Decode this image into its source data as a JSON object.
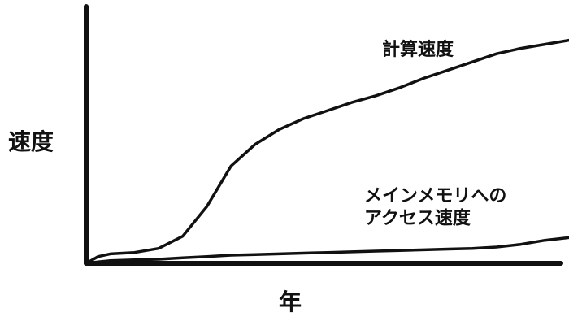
{
  "chart_data": {
    "type": "line",
    "title": "",
    "xlabel": "年",
    "ylabel": "速度",
    "grid": false,
    "legend": "none",
    "x": [
      0,
      0.5,
      1,
      2,
      3,
      4,
      5,
      6,
      7,
      8,
      9,
      10,
      11,
      12,
      13,
      14,
      15,
      16,
      17,
      18,
      19,
      20
    ],
    "series": [
      {
        "name": "計算速度",
        "values": [
          0,
          5,
          7,
          8,
          11,
          20,
          42,
          72,
          88,
          99,
          107,
          113,
          119,
          124,
          130,
          137,
          143,
          149,
          155,
          159,
          162,
          165
        ]
      },
      {
        "name": "メインメモリへの\nアクセス速度",
        "values": [
          0,
          1,
          2,
          2.5,
          3,
          4,
          5,
          6,
          6.5,
          7,
          7.5,
          8,
          8.5,
          9,
          9.5,
          10,
          10.5,
          11,
          12,
          14,
          17,
          19
        ]
      }
    ],
    "xlim": [
      0,
      20
    ],
    "ylim": [
      0,
      190
    ],
    "colors": {
      "axis": "#111111",
      "line": "#111111"
    }
  }
}
